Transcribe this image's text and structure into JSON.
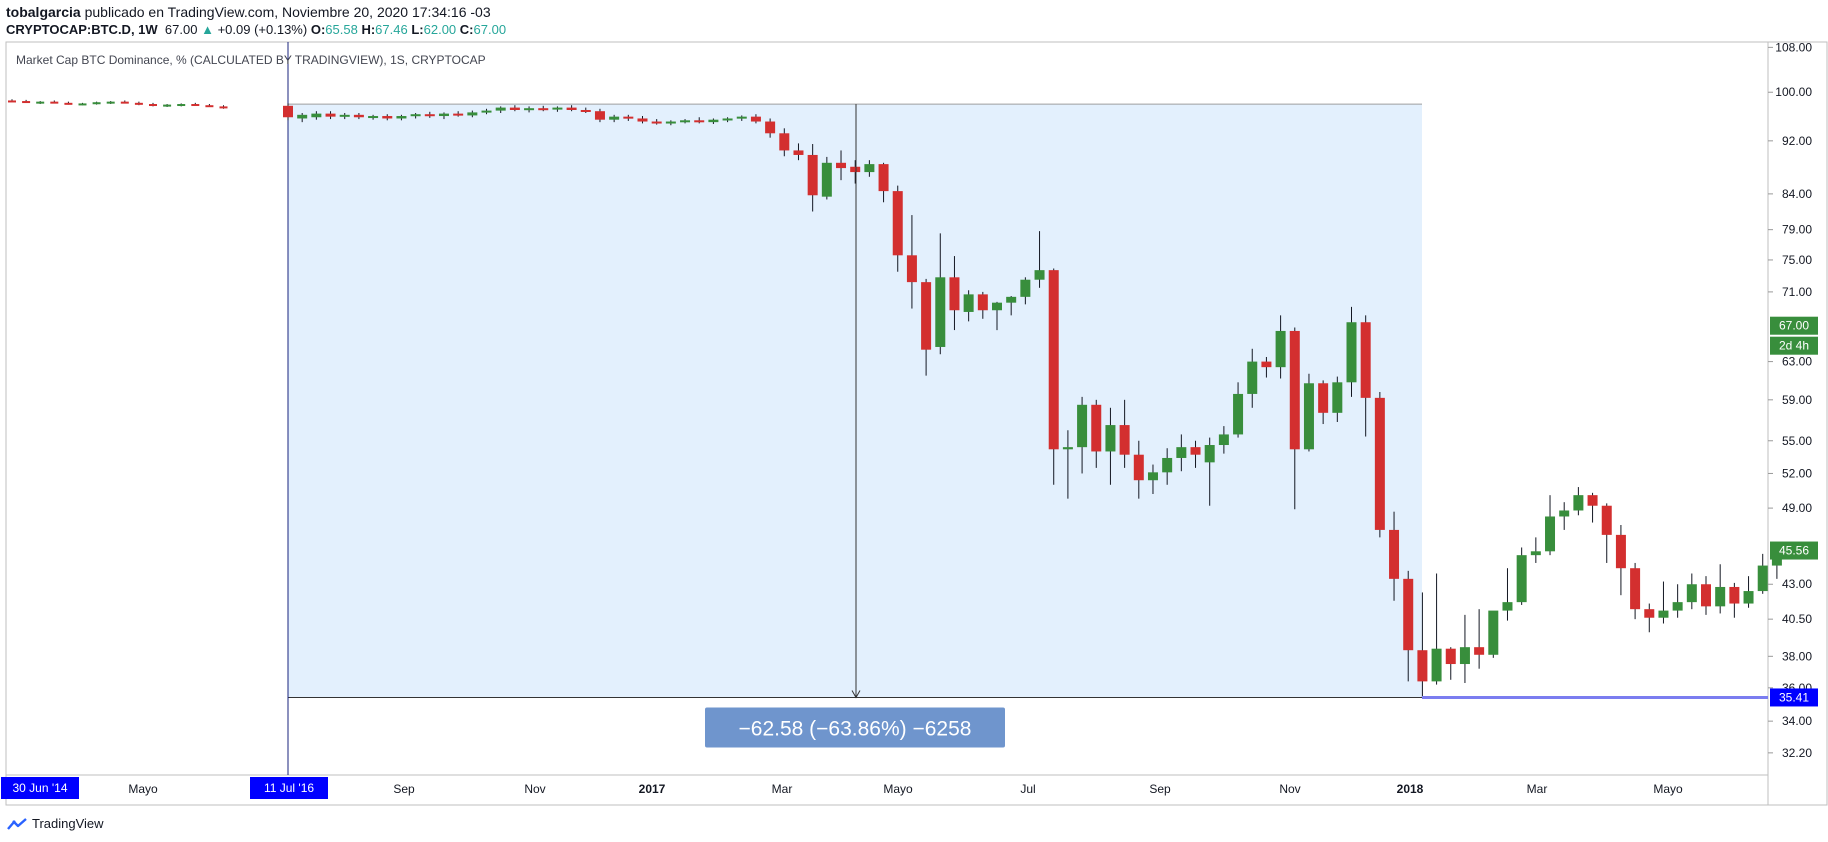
{
  "header": {
    "author": "tobalgarcia",
    "published": " publicado en TradingView.com, Noviembre 20, 2020 17:34:16 -03",
    "symbol": "CRYPTOCAP:BTC.D, 1W",
    "last": "67.00",
    "change_arrow": "▲",
    "change": "+0.09 (+0.13%)",
    "o_label": "O:",
    "o_value": "65.58",
    "h_label": "H:",
    "h_value": "67.46",
    "l_label": "L:",
    "l_value": "62.00",
    "c_label": "C:",
    "c_value": "67.00"
  },
  "pane_title": "Market Cap BTC Dominance, % (CALCULATED BY TRADINGVIEW), 1S, CRYPTOCAP",
  "footer": {
    "brand": "TradingView",
    "brand_icon": "tradingview-logo-icon"
  },
  "colors": {
    "up": "#388e3c",
    "down": "#d32f2f",
    "range_fill": "#e3f0fd",
    "label_blue": "#0000ff",
    "price_green": "#388e3c",
    "measure_box": "#6f95cd"
  },
  "chart_data": {
    "type": "candlestick",
    "title": "Market Cap BTC Dominance, % (CALCULATED BY TRADINGVIEW), 1S, CRYPTOCAP",
    "y_scale": "log",
    "ylim": [
      31,
      109
    ],
    "y_ticks": [
      "108.00",
      "100.00",
      "92.00",
      "84.00",
      "79.00",
      "75.00",
      "71.00",
      "63.00",
      "59.00",
      "55.00",
      "52.00",
      "49.00",
      "43.00",
      "40.50",
      "38.00",
      "36.00",
      "34.00",
      "32.20"
    ],
    "x_ticks": [
      {
        "label": "30 Jun '14",
        "highlight": true
      },
      {
        "label": "Mayo"
      },
      {
        "label": "11 Jul '16",
        "highlight": true
      },
      {
        "label": "Sep"
      },
      {
        "label": "Nov"
      },
      {
        "label": "2017",
        "bold": true
      },
      {
        "label": "Mar"
      },
      {
        "label": "Mayo"
      },
      {
        "label": "Jul"
      },
      {
        "label": "Sep"
      },
      {
        "label": "Nov"
      },
      {
        "label": "2018",
        "bold": true
      },
      {
        "label": "Mar"
      },
      {
        "label": "Mayo"
      }
    ],
    "price_labels": [
      {
        "value": "67.00",
        "kind": "last"
      },
      {
        "value": "2d 4h",
        "kind": "countdown"
      },
      {
        "value": "45.56",
        "kind": "level"
      },
      {
        "value": "35.41",
        "kind": "range-low"
      }
    ],
    "measurement": {
      "start_price": 97.99,
      "end_price": 35.41,
      "label": "−62.58 (−63.86%) −6258"
    },
    "pre_range_candles": [
      {
        "o": 98.6,
        "h": 98.8,
        "l": 98.4,
        "c": 98.5
      },
      {
        "o": 98.5,
        "h": 98.7,
        "l": 98.2,
        "c": 98.3
      },
      {
        "o": 98.3,
        "h": 98.5,
        "l": 98.0,
        "c": 98.4
      },
      {
        "o": 98.4,
        "h": 98.6,
        "l": 98.1,
        "c": 98.2
      },
      {
        "o": 98.2,
        "h": 98.4,
        "l": 97.9,
        "c": 98.0
      },
      {
        "o": 98.0,
        "h": 98.2,
        "l": 97.8,
        "c": 98.1
      },
      {
        "o": 98.1,
        "h": 98.4,
        "l": 97.9,
        "c": 98.3
      },
      {
        "o": 98.3,
        "h": 98.5,
        "l": 98.0,
        "c": 98.4
      },
      {
        "o": 98.4,
        "h": 98.6,
        "l": 98.1,
        "c": 98.2
      },
      {
        "o": 98.2,
        "h": 98.4,
        "l": 97.8,
        "c": 98.0
      },
      {
        "o": 98.0,
        "h": 98.2,
        "l": 97.6,
        "c": 97.8
      },
      {
        "o": 97.8,
        "h": 98.0,
        "l": 97.5,
        "c": 97.9
      },
      {
        "o": 97.9,
        "h": 98.1,
        "l": 97.6,
        "c": 98.0
      },
      {
        "o": 98.0,
        "h": 98.2,
        "l": 97.7,
        "c": 97.8
      },
      {
        "o": 97.8,
        "h": 98.0,
        "l": 97.5,
        "c": 97.6
      },
      {
        "o": 97.6,
        "h": 97.8,
        "l": 97.2,
        "c": 97.4
      }
    ],
    "candles": [
      {
        "o": 97.7,
        "h": 98.1,
        "l": 95.3,
        "c": 95.8
      },
      {
        "o": 95.6,
        "h": 96.5,
        "l": 95.0,
        "c": 96.2
      },
      {
        "o": 95.8,
        "h": 96.8,
        "l": 95.4,
        "c": 96.4
      },
      {
        "o": 96.4,
        "h": 96.8,
        "l": 95.5,
        "c": 95.9
      },
      {
        "o": 95.9,
        "h": 96.5,
        "l": 95.5,
        "c": 96.2
      },
      {
        "o": 96.2,
        "h": 96.5,
        "l": 95.5,
        "c": 95.8
      },
      {
        "o": 95.8,
        "h": 96.2,
        "l": 95.4,
        "c": 96.0
      },
      {
        "o": 96.0,
        "h": 96.3,
        "l": 95.3,
        "c": 95.6
      },
      {
        "o": 95.6,
        "h": 96.2,
        "l": 95.3,
        "c": 96.0
      },
      {
        "o": 96.0,
        "h": 96.5,
        "l": 95.6,
        "c": 96.3
      },
      {
        "o": 96.3,
        "h": 96.7,
        "l": 95.7,
        "c": 96.0
      },
      {
        "o": 96.0,
        "h": 96.6,
        "l": 95.5,
        "c": 96.4
      },
      {
        "o": 96.4,
        "h": 96.8,
        "l": 95.9,
        "c": 96.1
      },
      {
        "o": 96.1,
        "h": 96.9,
        "l": 95.8,
        "c": 96.6
      },
      {
        "o": 96.6,
        "h": 97.2,
        "l": 96.3,
        "c": 96.9
      },
      {
        "o": 96.9,
        "h": 97.6,
        "l": 96.5,
        "c": 97.4
      },
      {
        "o": 97.4,
        "h": 97.8,
        "l": 96.8,
        "c": 97.0
      },
      {
        "o": 97.0,
        "h": 97.6,
        "l": 96.6,
        "c": 97.3
      },
      {
        "o": 97.3,
        "h": 97.7,
        "l": 96.8,
        "c": 97.1
      },
      {
        "o": 97.1,
        "h": 97.6,
        "l": 96.7,
        "c": 97.4
      },
      {
        "o": 97.4,
        "h": 97.8,
        "l": 96.8,
        "c": 97.0
      },
      {
        "o": 97.0,
        "h": 97.4,
        "l": 96.5,
        "c": 96.8
      },
      {
        "o": 96.8,
        "h": 97.2,
        "l": 95.0,
        "c": 95.4
      },
      {
        "o": 95.4,
        "h": 96.2,
        "l": 95.0,
        "c": 95.9
      },
      {
        "o": 95.9,
        "h": 96.2,
        "l": 95.2,
        "c": 95.6
      },
      {
        "o": 95.6,
        "h": 96.0,
        "l": 94.8,
        "c": 95.1
      },
      {
        "o": 95.1,
        "h": 95.5,
        "l": 94.6,
        "c": 94.8
      },
      {
        "o": 94.8,
        "h": 95.3,
        "l": 94.5,
        "c": 95.1
      },
      {
        "o": 95.1,
        "h": 95.5,
        "l": 94.8,
        "c": 95.3
      },
      {
        "o": 95.3,
        "h": 95.8,
        "l": 94.8,
        "c": 95.0
      },
      {
        "o": 95.0,
        "h": 95.6,
        "l": 94.7,
        "c": 95.4
      },
      {
        "o": 95.4,
        "h": 95.8,
        "l": 95.0,
        "c": 95.6
      },
      {
        "o": 95.6,
        "h": 96.1,
        "l": 95.2,
        "c": 95.9
      },
      {
        "o": 95.9,
        "h": 96.3,
        "l": 94.8,
        "c": 95.1
      },
      {
        "o": 95.1,
        "h": 95.6,
        "l": 92.5,
        "c": 93.2
      },
      {
        "o": 93.2,
        "h": 94.0,
        "l": 89.6,
        "c": 90.5
      },
      {
        "o": 90.5,
        "h": 91.6,
        "l": 89.0,
        "c": 89.8
      },
      {
        "o": 89.8,
        "h": 91.5,
        "l": 81.5,
        "c": 83.8
      },
      {
        "o": 83.6,
        "h": 89.5,
        "l": 83.2,
        "c": 88.6
      },
      {
        "o": 88.6,
        "h": 90.5,
        "l": 86.0,
        "c": 87.8
      },
      {
        "o": 88.0,
        "h": 89.0,
        "l": 85.5,
        "c": 87.2
      },
      {
        "o": 87.2,
        "h": 89.0,
        "l": 86.5,
        "c": 88.4
      },
      {
        "o": 88.4,
        "h": 88.6,
        "l": 82.8,
        "c": 84.4
      },
      {
        "o": 84.4,
        "h": 85.2,
        "l": 73.5,
        "c": 75.6
      },
      {
        "o": 75.6,
        "h": 81.0,
        "l": 69.0,
        "c": 72.2
      },
      {
        "o": 72.2,
        "h": 72.6,
        "l": 61.5,
        "c": 64.3
      },
      {
        "o": 64.6,
        "h": 78.5,
        "l": 63.8,
        "c": 72.8
      },
      {
        "o": 72.8,
        "h": 75.5,
        "l": 66.5,
        "c": 68.8
      },
      {
        "o": 68.6,
        "h": 71.2,
        "l": 67.5,
        "c": 70.7
      },
      {
        "o": 70.7,
        "h": 71.0,
        "l": 67.8,
        "c": 68.8
      },
      {
        "o": 68.8,
        "h": 69.8,
        "l": 66.5,
        "c": 69.7
      },
      {
        "o": 69.7,
        "h": 70.5,
        "l": 68.2,
        "c": 70.4
      },
      {
        "o": 70.4,
        "h": 72.8,
        "l": 69.5,
        "c": 72.5
      },
      {
        "o": 72.5,
        "h": 78.8,
        "l": 71.5,
        "c": 73.7
      },
      {
        "o": 73.7,
        "h": 73.9,
        "l": 51.0,
        "c": 54.2
      },
      {
        "o": 54.2,
        "h": 56.0,
        "l": 49.8,
        "c": 54.4
      },
      {
        "o": 54.4,
        "h": 59.3,
        "l": 52.0,
        "c": 58.5
      },
      {
        "o": 58.5,
        "h": 59.0,
        "l": 52.5,
        "c": 54.0
      },
      {
        "o": 54.0,
        "h": 58.2,
        "l": 51.0,
        "c": 56.5
      },
      {
        "o": 56.5,
        "h": 59.0,
        "l": 52.5,
        "c": 53.7
      },
      {
        "o": 53.7,
        "h": 55.0,
        "l": 49.8,
        "c": 51.4
      },
      {
        "o": 51.4,
        "h": 52.8,
        "l": 50.2,
        "c": 52.1
      },
      {
        "o": 52.1,
        "h": 54.3,
        "l": 51.0,
        "c": 53.4
      },
      {
        "o": 53.4,
        "h": 55.6,
        "l": 52.2,
        "c": 54.4
      },
      {
        "o": 54.4,
        "h": 55.0,
        "l": 52.5,
        "c": 53.7
      },
      {
        "o": 53.0,
        "h": 55.3,
        "l": 49.2,
        "c": 54.6
      },
      {
        "o": 54.6,
        "h": 56.4,
        "l": 53.8,
        "c": 55.6
      },
      {
        "o": 55.6,
        "h": 60.8,
        "l": 55.3,
        "c": 59.6
      },
      {
        "o": 59.6,
        "h": 64.4,
        "l": 58.2,
        "c": 63.0
      },
      {
        "o": 63.0,
        "h": 63.5,
        "l": 61.3,
        "c": 62.4
      },
      {
        "o": 62.4,
        "h": 68.2,
        "l": 61.2,
        "c": 66.4
      },
      {
        "o": 66.4,
        "h": 66.8,
        "l": 48.9,
        "c": 54.2
      },
      {
        "o": 54.2,
        "h": 61.7,
        "l": 54.0,
        "c": 60.7
      },
      {
        "o": 60.7,
        "h": 61.0,
        "l": 56.6,
        "c": 57.7
      },
      {
        "o": 57.7,
        "h": 61.4,
        "l": 56.8,
        "c": 60.8
      },
      {
        "o": 60.8,
        "h": 69.2,
        "l": 59.3,
        "c": 67.4
      },
      {
        "o": 67.4,
        "h": 68.2,
        "l": 55.4,
        "c": 59.2
      },
      {
        "o": 59.2,
        "h": 59.8,
        "l": 46.6,
        "c": 47.2
      },
      {
        "o": 47.2,
        "h": 48.7,
        "l": 41.8,
        "c": 43.4
      },
      {
        "o": 43.4,
        "h": 44.0,
        "l": 36.4,
        "c": 38.4
      },
      {
        "o": 38.4,
        "h": 42.4,
        "l": 35.41,
        "c": 36.4
      },
      {
        "o": 36.4,
        "h": 43.8,
        "l": 36.2,
        "c": 38.5
      },
      {
        "o": 38.5,
        "h": 38.6,
        "l": 36.5,
        "c": 37.5
      },
      {
        "o": 37.5,
        "h": 40.8,
        "l": 36.3,
        "c": 38.6
      },
      {
        "o": 38.6,
        "h": 41.2,
        "l": 37.2,
        "c": 38.1
      },
      {
        "o": 38.1,
        "h": 41.0,
        "l": 37.9,
        "c": 41.1
      },
      {
        "o": 41.1,
        "h": 44.2,
        "l": 40.4,
        "c": 41.7
      },
      {
        "o": 41.7,
        "h": 45.8,
        "l": 41.5,
        "c": 45.2
      },
      {
        "o": 45.2,
        "h": 46.6,
        "l": 44.6,
        "c": 45.5
      },
      {
        "o": 45.5,
        "h": 50.1,
        "l": 45.2,
        "c": 48.3
      },
      {
        "o": 48.3,
        "h": 49.5,
        "l": 47.2,
        "c": 48.8
      },
      {
        "o": 48.8,
        "h": 50.8,
        "l": 48.4,
        "c": 50.1
      },
      {
        "o": 50.1,
        "h": 50.3,
        "l": 47.8,
        "c": 49.2
      },
      {
        "o": 49.2,
        "h": 49.4,
        "l": 44.6,
        "c": 46.8
      },
      {
        "o": 46.8,
        "h": 47.6,
        "l": 42.2,
        "c": 44.2
      },
      {
        "o": 44.2,
        "h": 44.6,
        "l": 40.5,
        "c": 41.2
      },
      {
        "o": 41.2,
        "h": 41.6,
        "l": 39.6,
        "c": 40.6
      },
      {
        "o": 40.6,
        "h": 43.2,
        "l": 40.2,
        "c": 41.1
      },
      {
        "o": 41.1,
        "h": 43.0,
        "l": 40.6,
        "c": 41.7
      },
      {
        "o": 41.7,
        "h": 43.8,
        "l": 41.2,
        "c": 43.0
      },
      {
        "o": 43.0,
        "h": 43.6,
        "l": 40.8,
        "c": 41.4
      },
      {
        "o": 41.4,
        "h": 44.5,
        "l": 40.9,
        "c": 42.8
      },
      {
        "o": 42.8,
        "h": 43.1,
        "l": 40.6,
        "c": 41.6
      },
      {
        "o": 41.6,
        "h": 43.6,
        "l": 41.3,
        "c": 42.5
      },
      {
        "o": 42.5,
        "h": 45.3,
        "l": 42.3,
        "c": 44.4
      },
      {
        "o": 44.4,
        "h": 46.2,
        "l": 43.4,
        "c": 45.56
      }
    ]
  }
}
